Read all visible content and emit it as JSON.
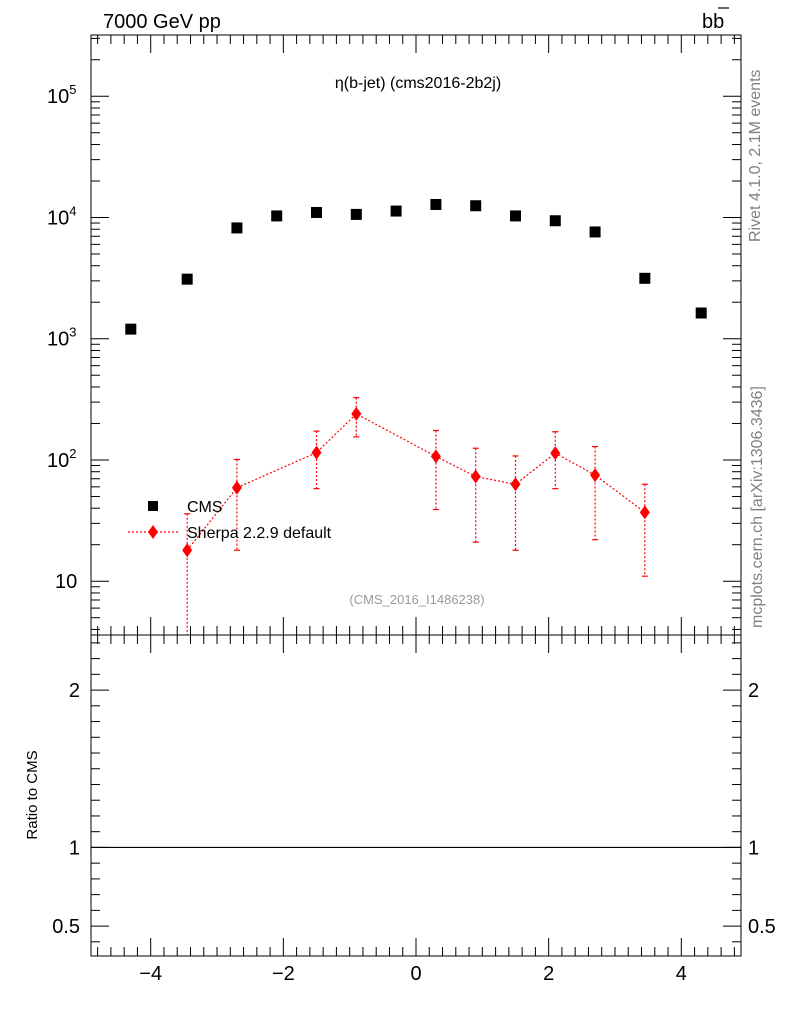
{
  "header": {
    "left": "7000 GeV pp",
    "right_base": "b",
    "right_bar": "b"
  },
  "side": {
    "top": "Rivet 4.1.0,  2.1M events",
    "bottom": "mcplots.cern.ch [arXiv:1306.3436]"
  },
  "chart_data": {
    "type": "scatter",
    "title": "η(b-jet) (cms2016-2b2j)",
    "reference": "(CMS_2016_I1486238)",
    "xlabel": "",
    "ylabel": "",
    "ratio_ylabel": "Ratio to CMS",
    "xlim": [
      -4.9,
      4.9
    ],
    "ylim": [
      3.6,
      320000
    ],
    "yscale": "log",
    "ratio_ylim": [
      0.31,
      2.35
    ],
    "x_ticks": [
      "−4",
      "−2",
      "0",
      "2",
      "4"
    ],
    "y_ticks": [
      {
        "base": "10",
        "exp": "5"
      },
      {
        "base": "10",
        "exp": "4"
      },
      {
        "base": "10",
        "exp": "3"
      },
      {
        "base": "10",
        "exp": "2"
      },
      {
        "base": "10",
        "exp": ""
      }
    ],
    "ratio_ticks": [
      "2",
      "1",
      "0.5"
    ],
    "series": [
      {
        "name": "CMS",
        "color": "#000000",
        "marker": "square",
        "x": [
          -4.3,
          -3.45,
          -2.7,
          -2.1,
          -1.5,
          -0.9,
          -0.3,
          0.3,
          0.9,
          1.5,
          2.1,
          2.7,
          3.45,
          4.3
        ],
        "y": [
          1200,
          3100,
          8200,
          10300,
          11000,
          10600,
          11300,
          12800,
          12500,
          10300,
          9400,
          7600,
          3150,
          1630
        ]
      },
      {
        "name": "Sherpa 2.2.9 default",
        "color": "#ff0000",
        "marker": "diamond",
        "x": [
          -3.45,
          -2.7,
          -1.5,
          -0.9,
          0.3,
          0.9,
          1.5,
          2.1,
          2.7,
          3.45
        ],
        "y": [
          18,
          59,
          115,
          240,
          107,
          73,
          63,
          114,
          75,
          37
        ],
        "yerr_low": [
          18,
          41,
          57,
          85,
          68,
          52,
          45,
          56,
          53,
          26
        ],
        "yerr_high": [
          18,
          42,
          58,
          87,
          68,
          52,
          45,
          57,
          54,
          26
        ]
      }
    ],
    "legend_position": "lower-left"
  }
}
